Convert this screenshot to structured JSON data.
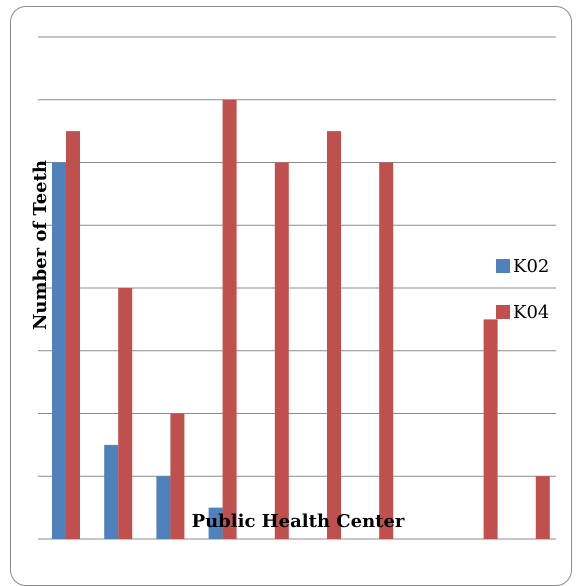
{
  "chart_data": {
    "type": "bar",
    "categories": [
      "",
      "",
      "",
      "",
      "",
      "",
      "",
      "",
      "",
      ""
    ],
    "series": [
      {
        "name": "K02",
        "color": "#4f81bd",
        "values": [
          6,
          1.5,
          1,
          0.5,
          0,
          0,
          0,
          0,
          0,
          0
        ]
      },
      {
        "name": "K04",
        "color": "#c0504d",
        "values": [
          6.5,
          4,
          2,
          7,
          6,
          6.5,
          6,
          0,
          3.5,
          1
        ]
      }
    ],
    "xlabel": "Public Health Center",
    "ylabel": "Number of Teeth",
    "ylim": [
      0,
      8
    ],
    "grid": true,
    "legend_position": "right"
  }
}
